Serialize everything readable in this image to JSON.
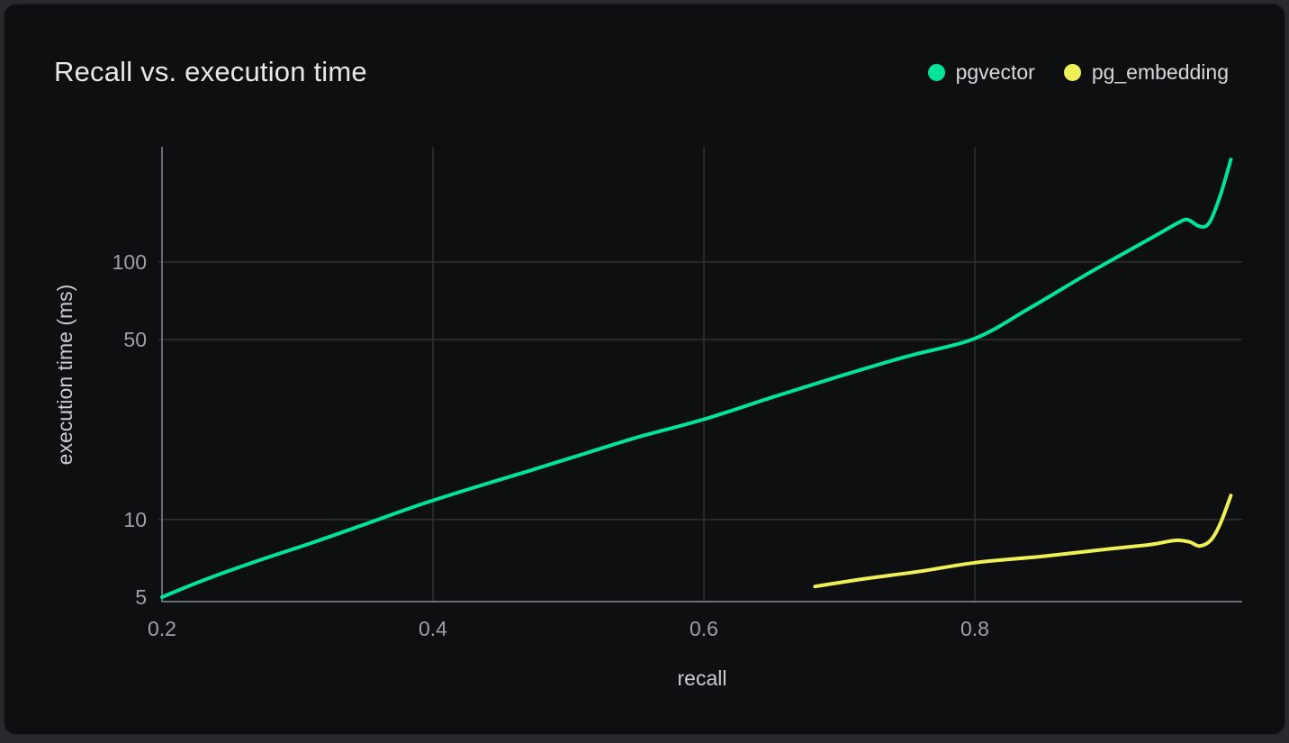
{
  "page": {
    "background": "#27292d"
  },
  "card": {
    "background": "#0e0f11",
    "border": "#1d1f22"
  },
  "chart": {
    "title": "Recall vs. execution time"
  },
  "colors": {
    "grid": "#2e3035",
    "axis": "#696d75",
    "tick_label": "#9ea1a8",
    "axis_title": "#c9ccd1",
    "title": "#e7e8ea",
    "legend_text": "#d7d9dd"
  },
  "chart_data": {
    "type": "line",
    "title": "Recall vs. execution time",
    "xlabel": "recall",
    "ylabel": "execution time (ms)",
    "xscale": "linear",
    "yscale": "log",
    "xlim": [
      0.2,
      1.0
    ],
    "ylim": [
      5,
      280
    ],
    "xticks": [
      0.2,
      0.4,
      0.6,
      0.8
    ],
    "yticks": [
      5,
      10,
      50,
      100
    ],
    "grid": true,
    "legend_position": "top-right",
    "series": [
      {
        "name": "pgvector",
        "color": "#00e599",
        "points": [
          [
            0.2,
            5.0
          ],
          [
            0.23,
            5.8
          ],
          [
            0.27,
            6.9
          ],
          [
            0.31,
            8.1
          ],
          [
            0.35,
            9.6
          ],
          [
            0.39,
            11.4
          ],
          [
            0.43,
            13.3
          ],
          [
            0.47,
            15.4
          ],
          [
            0.51,
            17.9
          ],
          [
            0.55,
            20.8
          ],
          [
            0.6,
            24.5
          ],
          [
            0.65,
            29.8
          ],
          [
            0.7,
            36.0
          ],
          [
            0.75,
            43.0
          ],
          [
            0.8,
            50.5
          ],
          [
            0.84,
            66.0
          ],
          [
            0.88,
            88.0
          ],
          [
            0.91,
            108.0
          ],
          [
            0.935,
            128.0
          ],
          [
            0.95,
            142.0
          ],
          [
            0.957,
            146.0
          ],
          [
            0.966,
            137.5
          ],
          [
            0.973,
            142.0
          ],
          [
            0.981,
            180.0
          ],
          [
            0.989,
            250.0
          ]
        ]
      },
      {
        "name": "pg_embedding",
        "color": "#eef056",
        "points": [
          [
            0.682,
            5.5
          ],
          [
            0.72,
            5.9
          ],
          [
            0.76,
            6.3
          ],
          [
            0.8,
            6.8
          ],
          [
            0.85,
            7.2
          ],
          [
            0.9,
            7.7
          ],
          [
            0.93,
            8.0
          ],
          [
            0.948,
            8.3
          ],
          [
            0.958,
            8.2
          ],
          [
            0.966,
            7.9
          ],
          [
            0.974,
            8.3
          ],
          [
            0.981,
            9.6
          ],
          [
            0.989,
            12.4
          ]
        ]
      }
    ]
  }
}
